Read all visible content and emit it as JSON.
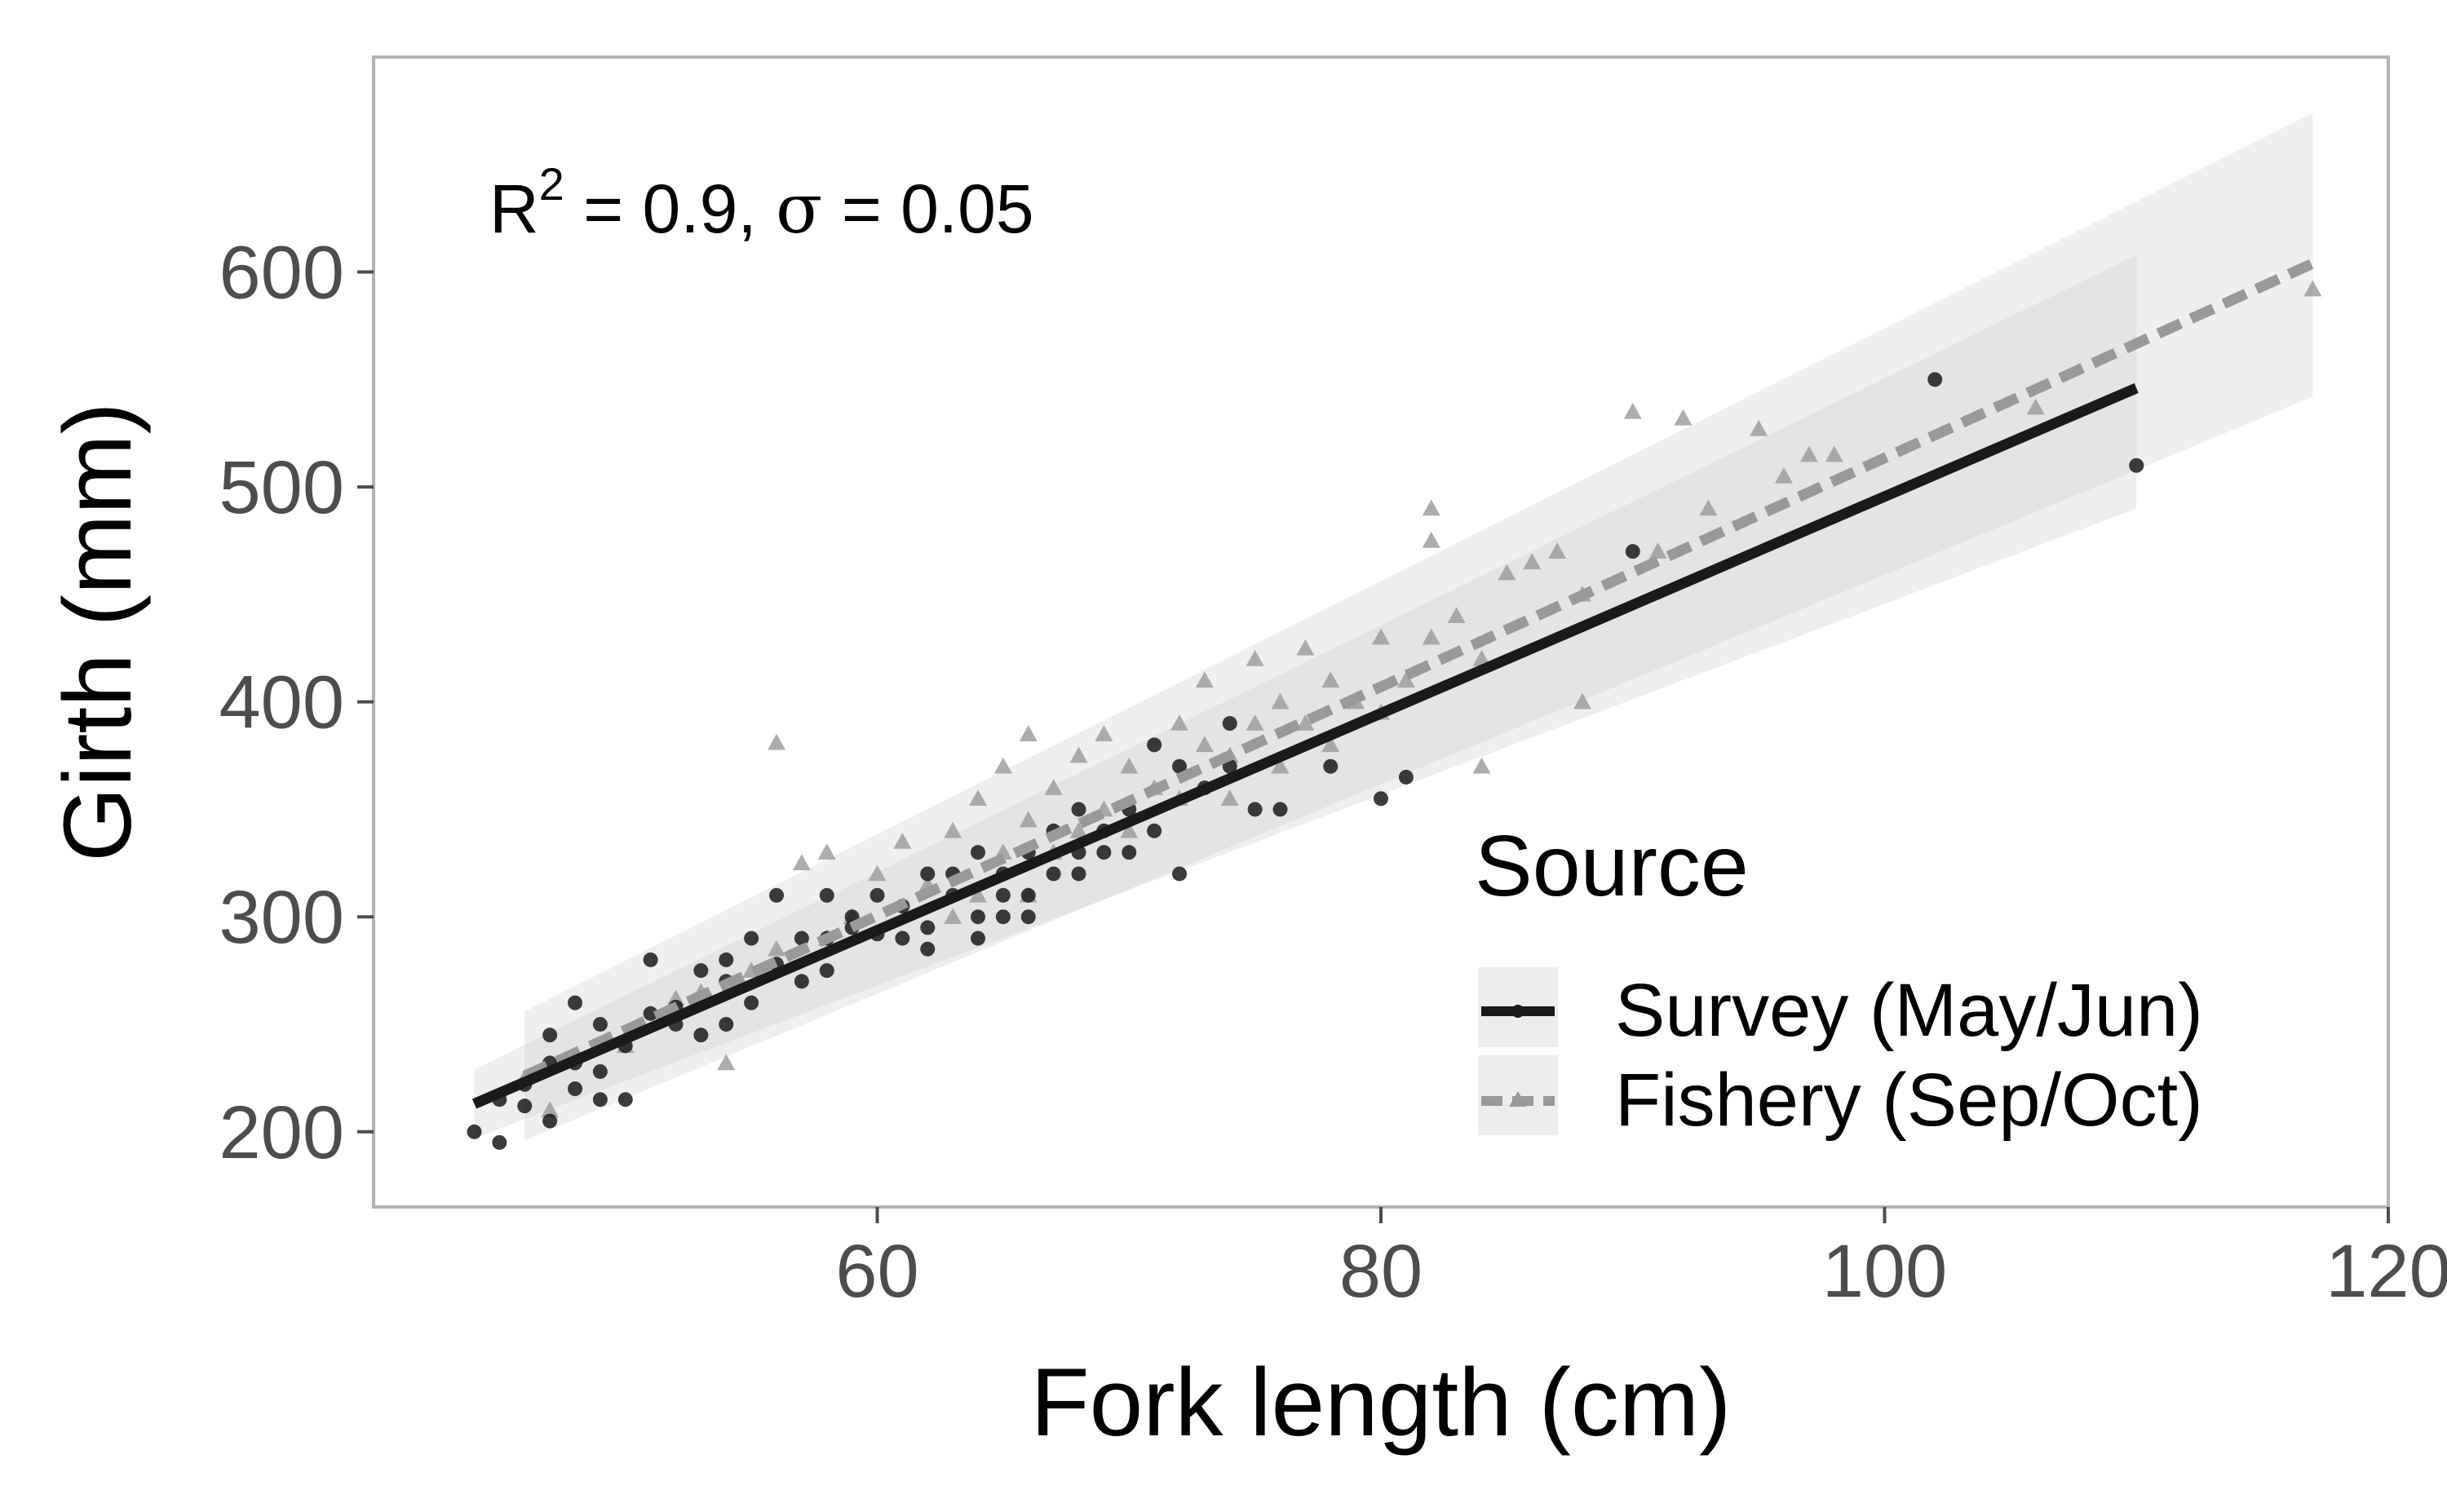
{
  "chart_data": {
    "type": "scatter",
    "title": "",
    "xlabel": "Fork length (cm)",
    "ylabel": "Girth (mm)",
    "xlim": [
      40,
      120
    ],
    "ylim": [
      165,
      700
    ],
    "x_ticks": [
      60,
      80,
      100,
      120
    ],
    "y_ticks": [
      200,
      300,
      400,
      500,
      600
    ],
    "grid": false,
    "annotation": {
      "r_symbol": "R",
      "r_exp": "2",
      "r_text": " = 0.9,  ",
      "sigma_symbol": "σ",
      "sigma_text": " = 0.05"
    },
    "legend": {
      "title": "Source",
      "position": "bottom-right inside plot"
    },
    "series": [
      {
        "name": "Survey (May/Jun)",
        "marker": "circle",
        "color": "#1a1a1a",
        "line_style": "solid",
        "fit": [
          [
            44,
            213
          ],
          [
            110,
            546
          ]
        ],
        "band": [
          [
            44,
            197,
            229
          ],
          [
            110,
            490,
            608
          ]
        ],
        "points": [
          [
            44,
            200
          ],
          [
            45,
            195
          ],
          [
            45,
            215
          ],
          [
            46,
            222
          ],
          [
            46,
            212
          ],
          [
            47,
            245
          ],
          [
            47,
            205
          ],
          [
            47,
            232
          ],
          [
            48,
            220
          ],
          [
            48,
            260
          ],
          [
            48,
            232
          ],
          [
            49,
            250
          ],
          [
            49,
            215
          ],
          [
            49,
            228
          ],
          [
            50,
            215
          ],
          [
            50,
            240
          ],
          [
            51,
            255
          ],
          [
            51,
            280
          ],
          [
            52,
            258
          ],
          [
            52,
            250
          ],
          [
            53,
            275
          ],
          [
            53,
            262
          ],
          [
            53,
            245
          ],
          [
            54,
            280
          ],
          [
            54,
            250
          ],
          [
            54,
            270
          ],
          [
            55,
            290
          ],
          [
            55,
            260
          ],
          [
            56,
            310
          ],
          [
            56,
            278
          ],
          [
            57,
            290
          ],
          [
            57,
            270
          ],
          [
            58,
            310
          ],
          [
            58,
            290
          ],
          [
            58,
            275
          ],
          [
            59,
            295
          ],
          [
            59,
            300
          ],
          [
            60,
            310
          ],
          [
            60,
            292
          ],
          [
            61,
            305
          ],
          [
            61,
            290
          ],
          [
            62,
            320
          ],
          [
            62,
            295
          ],
          [
            62,
            285
          ],
          [
            63,
            310
          ],
          [
            63,
            320
          ],
          [
            64,
            300
          ],
          [
            64,
            330
          ],
          [
            64,
            290
          ],
          [
            65,
            310
          ],
          [
            65,
            320
          ],
          [
            65,
            300
          ],
          [
            66,
            330
          ],
          [
            66,
            310
          ],
          [
            66,
            300
          ],
          [
            67,
            340
          ],
          [
            67,
            320
          ],
          [
            68,
            330
          ],
          [
            68,
            350
          ],
          [
            68,
            320
          ],
          [
            69,
            340
          ],
          [
            69,
            330
          ],
          [
            70,
            350
          ],
          [
            70,
            330
          ],
          [
            71,
            380
          ],
          [
            71,
            340
          ],
          [
            72,
            320
          ],
          [
            72,
            370
          ],
          [
            73,
            360
          ],
          [
            74,
            390
          ],
          [
            74,
            370
          ],
          [
            75,
            350
          ],
          [
            76,
            350
          ],
          [
            78,
            370
          ],
          [
            80,
            355
          ],
          [
            81,
            365
          ],
          [
            90,
            470
          ],
          [
            102,
            550
          ],
          [
            110,
            510
          ]
        ]
      },
      {
        "name": "Fishery (Sep/Oct)",
        "marker": "triangle",
        "color": "#999999",
        "line_style": "dashed",
        "fit": [
          [
            46,
            226
          ],
          [
            117,
            604
          ]
        ],
        "band": [
          [
            46,
            196,
            256
          ],
          [
            117,
            542,
            674
          ]
        ],
        "points": [
          [
            46,
            225
          ],
          [
            47,
            210
          ],
          [
            48,
            235
          ],
          [
            50,
            240
          ],
          [
            52,
            262
          ],
          [
            53,
            265
          ],
          [
            54,
            232
          ],
          [
            55,
            275
          ],
          [
            56,
            381
          ],
          [
            56,
            285
          ],
          [
            57,
            325
          ],
          [
            58,
            330
          ],
          [
            58,
            290
          ],
          [
            59,
            300
          ],
          [
            60,
            320
          ],
          [
            61,
            335
          ],
          [
            62,
            315
          ],
          [
            63,
            340
          ],
          [
            63,
            300
          ],
          [
            64,
            355
          ],
          [
            64,
            310
          ],
          [
            65,
            370
          ],
          [
            65,
            330
          ],
          [
            66,
            385
          ],
          [
            66,
            345
          ],
          [
            66,
            310
          ],
          [
            67,
            360
          ],
          [
            67,
            330
          ],
          [
            68,
            375
          ],
          [
            68,
            340
          ],
          [
            69,
            385
          ],
          [
            69,
            350
          ],
          [
            70,
            370
          ],
          [
            70,
            340
          ],
          [
            71,
            360
          ],
          [
            72,
            390
          ],
          [
            72,
            355
          ],
          [
            73,
            410
          ],
          [
            73,
            380
          ],
          [
            74,
            375
          ],
          [
            74,
            355
          ],
          [
            75,
            420
          ],
          [
            75,
            390
          ],
          [
            76,
            400
          ],
          [
            76,
            370
          ],
          [
            77,
            425
          ],
          [
            77,
            390
          ],
          [
            78,
            410
          ],
          [
            78,
            380
          ],
          [
            79,
            400
          ],
          [
            80,
            430
          ],
          [
            80,
            395
          ],
          [
            81,
            410
          ],
          [
            82,
            490
          ],
          [
            82,
            475
          ],
          [
            82,
            430
          ],
          [
            83,
            440
          ],
          [
            84,
            370
          ],
          [
            84,
            420
          ],
          [
            85,
            460
          ],
          [
            86,
            465
          ],
          [
            87,
            470
          ],
          [
            88,
            400
          ],
          [
            88,
            450
          ],
          [
            90,
            535
          ],
          [
            91,
            470
          ],
          [
            92,
            532
          ],
          [
            93,
            490
          ],
          [
            95,
            527
          ],
          [
            96,
            505
          ],
          [
            97,
            515
          ],
          [
            98,
            515
          ],
          [
            106,
            537
          ],
          [
            117,
            592
          ]
        ]
      }
    ]
  }
}
